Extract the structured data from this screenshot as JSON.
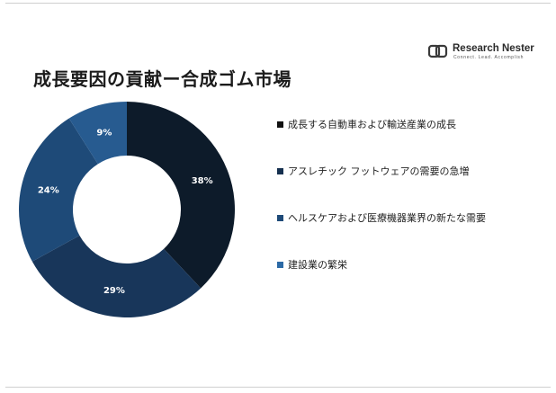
{
  "header": {
    "title": "成長要因の貢献ー合成ゴム市場",
    "logo_name": "Research Nester",
    "logo_tagline": "Connect. Lead. Accomplish"
  },
  "chart_data": {
    "type": "pie",
    "title": "成長要因の貢献ー合成ゴム市場",
    "donut": true,
    "start_angle_deg": 0,
    "legend_position": "right",
    "slices": [
      {
        "label": "成長する自動車および輸送産業の成長",
        "value": 38,
        "value_label": "38%",
        "color": "#0d1b2a",
        "legend_color": "#111111"
      },
      {
        "label": "アスレチック フットウェアの需要の急増",
        "value": 29,
        "value_label": "29%",
        "color": "#18365a",
        "legend_color": "#15304f"
      },
      {
        "label": "ヘルスケアおよび医療機器業界の新たな需要",
        "value": 24,
        "value_label": "24%",
        "color": "#1e4a78",
        "legend_color": "#1e4a78"
      },
      {
        "label": "建設業の繁栄",
        "value": 9,
        "value_label": "9%",
        "color": "#275b90",
        "legend_color": "#2c6aa6"
      }
    ]
  }
}
